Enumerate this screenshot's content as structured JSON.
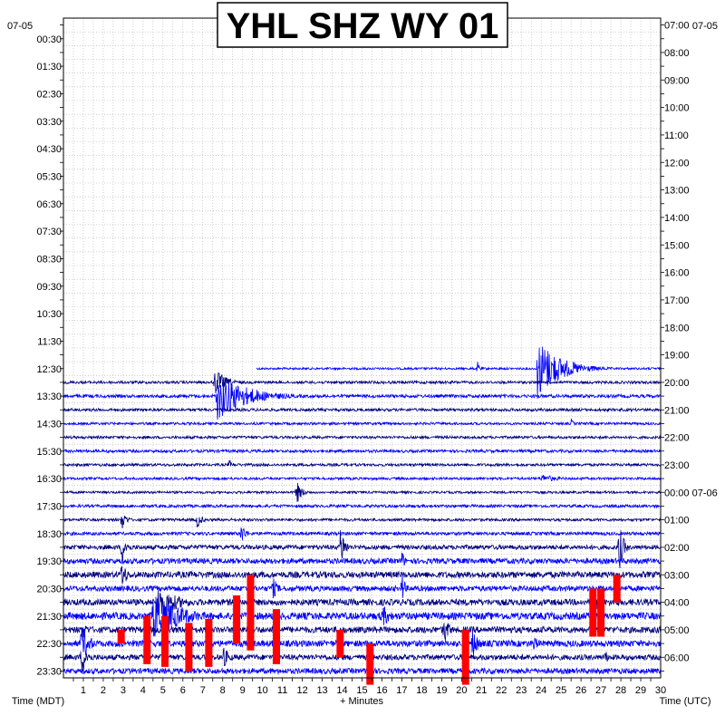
{
  "chart_data": {
    "type": "line",
    "title": "YHL SHZ WY 01",
    "date_left": "07-05",
    "date_right": "07-05",
    "xlabel": "+ Minutes",
    "xlabel_left": "Time (MDT)",
    "xlabel_right": "Time (UTC)",
    "xlim": [
      0,
      30
    ],
    "x_ticks": [
      "1",
      "2",
      "3",
      "4",
      "5",
      "6",
      "7",
      "8",
      "9",
      "10",
      "11",
      "12",
      "13",
      "14",
      "15",
      "16",
      "17",
      "18",
      "19",
      "20",
      "21",
      "22",
      "23",
      "24",
      "25",
      "26",
      "27",
      "28",
      "29",
      "30"
    ],
    "left_labels": [
      "00:30",
      "01:30",
      "02:30",
      "03:30",
      "04:30",
      "05:30",
      "06:30",
      "07:30",
      "08:30",
      "09:30",
      "10:30",
      "11:30",
      "12:30",
      "13:30",
      "14:30",
      "15:30",
      "16:30",
      "17:30",
      "18:30",
      "19:30",
      "20:30",
      "21:30",
      "22:30",
      "23:30"
    ],
    "right_labels": [
      "07:00",
      "08:00",
      "09:00",
      "10:00",
      "11:00",
      "12:00",
      "13:00",
      "14:00",
      "15:00",
      "16:00",
      "17:00",
      "18:00",
      "19:00",
      "20:00",
      "21:00",
      "22:00",
      "23:00",
      "00:00 07-06",
      "01:00",
      "02:00",
      "03:00",
      "04:00",
      "05:00",
      "06:00"
    ],
    "trace_colors": [
      "#000080",
      "#0000ff"
    ],
    "clip_color": "#ff0000",
    "grid": true,
    "first_trace_line": 25,
    "start_minute_first_trace": 9.7,
    "line_noise": [
      0,
      0,
      0,
      0,
      0,
      0,
      0,
      0,
      0,
      0,
      0,
      0,
      0,
      0,
      0,
      0,
      0,
      0,
      0,
      0,
      0,
      0,
      0,
      0,
      0,
      1.2,
      1.5,
      1.8,
      1.6,
      1.4,
      1.5,
      1.6,
      1.5,
      1.4,
      1.3,
      1.6,
      1.5,
      1.8,
      2.5,
      3.0,
      3.5,
      3.0,
      3.5,
      4.0,
      3.5,
      3.5,
      3.0,
      3.0
    ],
    "events": [
      {
        "line": 25,
        "minute": 23.8,
        "amp": 35,
        "duration": 2.5
      },
      {
        "line": 25,
        "minute": 20.8,
        "amp": 8,
        "duration": 0.3
      },
      {
        "line": 26,
        "minute": 7.6,
        "amp": 16,
        "duration": 1.2
      },
      {
        "line": 27,
        "minute": 7.7,
        "amp": 28,
        "duration": 3.2
      },
      {
        "line": 29,
        "minute": 25.5,
        "amp": 6,
        "duration": 0.3
      },
      {
        "line": 32,
        "minute": 8.3,
        "amp": 6,
        "duration": 0.5
      },
      {
        "line": 33,
        "minute": 24,
        "amp": 5,
        "duration": 2
      },
      {
        "line": 34,
        "minute": 11.7,
        "amp": 14,
        "duration": 0.6
      },
      {
        "line": 36,
        "minute": 2.9,
        "amp": 14,
        "duration": 0.5
      },
      {
        "line": 36,
        "minute": 6.7,
        "amp": 11,
        "duration": 0.5
      },
      {
        "line": 37,
        "minute": 8.9,
        "amp": 14,
        "duration": 0.5
      },
      {
        "line": 38,
        "minute": 2.9,
        "amp": 20,
        "duration": 0.6
      },
      {
        "line": 38,
        "minute": 13.9,
        "amp": 26,
        "duration": 0.5
      },
      {
        "line": 38,
        "minute": 27.9,
        "amp": 30,
        "duration": 0.5
      },
      {
        "line": 39,
        "minute": 17,
        "amp": 14,
        "duration": 0.3
      },
      {
        "line": 40,
        "minute": 2.9,
        "amp": 22,
        "duration": 0.5
      },
      {
        "line": 41,
        "minute": 10.5,
        "amp": 14,
        "duration": 0.6
      },
      {
        "line": 41,
        "minute": 17,
        "amp": 22,
        "duration": 0.3
      },
      {
        "line": 42,
        "minute": 4.7,
        "amp": 20,
        "duration": 2.2
      },
      {
        "line": 42,
        "minute": 26.5,
        "amp": 16,
        "duration": 1
      },
      {
        "line": 43,
        "minute": 4.5,
        "amp": 28,
        "duration": 3
      },
      {
        "line": 43,
        "minute": 16,
        "amp": 14,
        "duration": 1
      },
      {
        "line": 44,
        "minute": 0.9,
        "amp": 14,
        "duration": 0.6
      },
      {
        "line": 44,
        "minute": 19.1,
        "amp": 18,
        "duration": 0.6
      },
      {
        "line": 45,
        "minute": 0.9,
        "amp": 26,
        "duration": 0.8
      },
      {
        "line": 45,
        "minute": 20.5,
        "amp": 18,
        "duration": 0.8
      },
      {
        "line": 45,
        "minute": 23.6,
        "amp": 12,
        "duration": 0.5
      },
      {
        "line": 46,
        "minute": 0.9,
        "amp": 20,
        "duration": 0.7
      },
      {
        "line": 46,
        "minute": 8,
        "amp": 14,
        "duration": 0.7
      },
      {
        "line": 46,
        "minute": 27.2,
        "amp": 8,
        "duration": 0.6
      }
    ],
    "clips": [
      {
        "minute": 9.4,
        "line_from": 40,
        "line_to": 45.5
      },
      {
        "minute": 13.9,
        "line_from": 44,
        "line_to": 46
      },
      {
        "minute": 10.7,
        "line_from": 42.5,
        "line_to": 46.5
      },
      {
        "minute": 2.9,
        "line_from": 44,
        "line_to": 45
      },
      {
        "minute": 4.2,
        "line_from": 43,
        "line_to": 46.5
      },
      {
        "minute": 5.1,
        "line_from": 43,
        "line_to": 46.7
      },
      {
        "minute": 6.3,
        "line_from": 43.5,
        "line_to": 47
      },
      {
        "minute": 7.3,
        "line_from": 43.2,
        "line_to": 46.7
      },
      {
        "minute": 8.7,
        "line_from": 41.5,
        "line_to": 45
      },
      {
        "minute": 26.6,
        "line_from": 41,
        "line_to": 44.5
      },
      {
        "minute": 27.0,
        "line_from": 41,
        "line_to": 44.5
      },
      {
        "minute": 27.8,
        "line_from": 40,
        "line_to": 42
      },
      {
        "minute": 20.2,
        "line_from": 44,
        "line_to": 48
      },
      {
        "minute": 15.4,
        "line_from": 45,
        "line_to": 48
      }
    ]
  }
}
